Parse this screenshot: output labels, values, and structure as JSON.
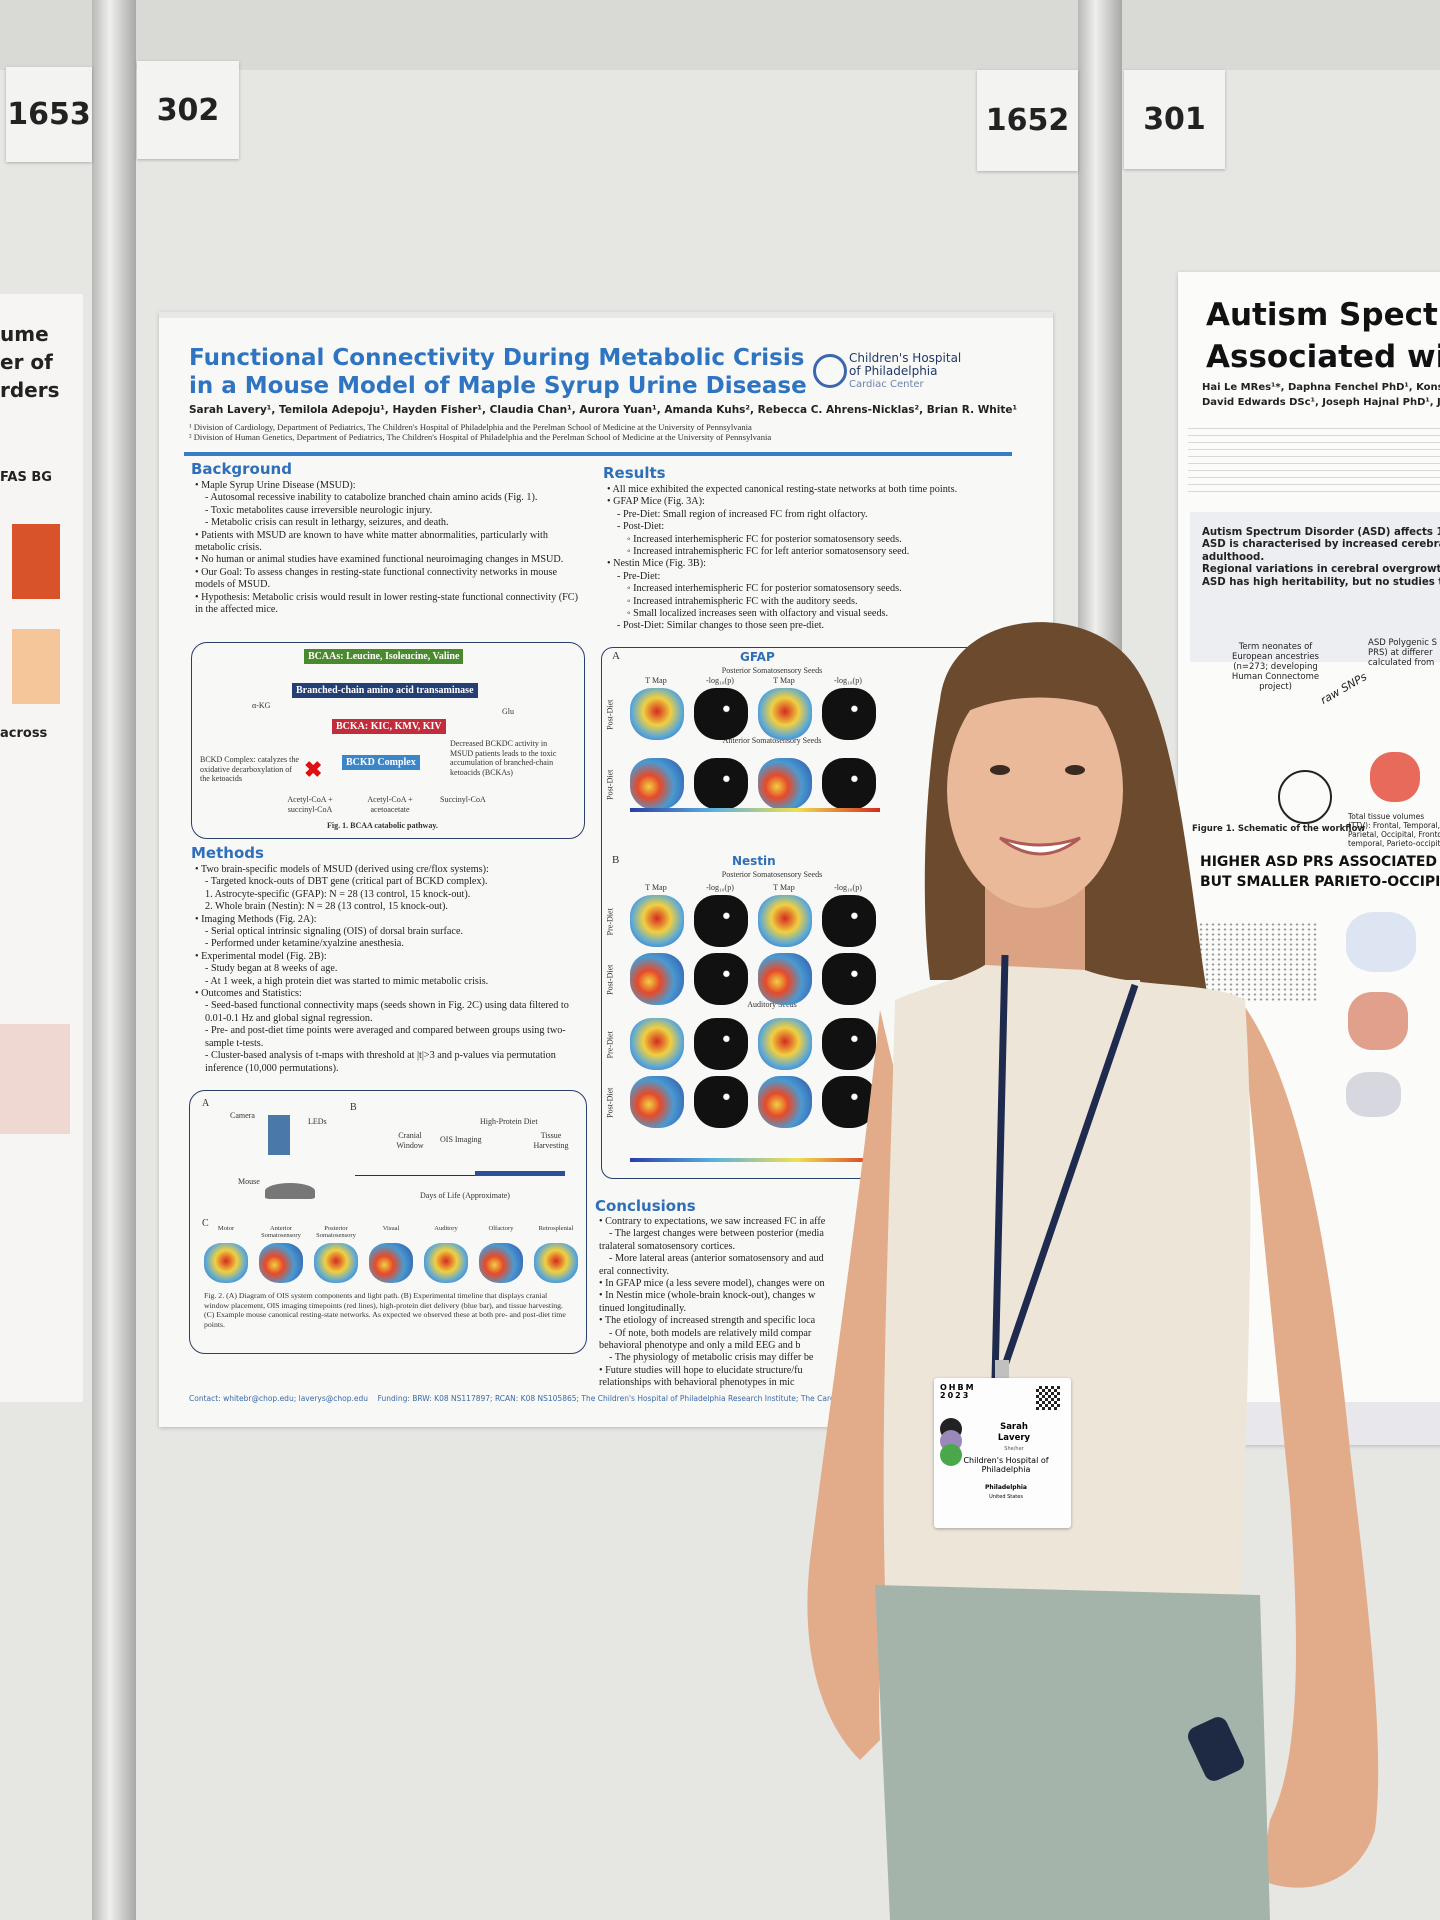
{
  "boards": [
    "1653",
    "302",
    "1652",
    "301"
  ],
  "poster": {
    "title": [
      "Functional Connectivity During Metabolic Crisis",
      "in a Mouse Model of Maple Syrup Urine Disease"
    ],
    "authors": "Sarah Lavery¹, Temilola Adepoju¹, Hayden Fisher¹, Claudia Chan¹, Aurora Yuan¹, Amanda Kuhs², Rebecca C. Ahrens-Nicklas², Brian R. White¹",
    "affiliations": [
      "¹ Division of Cardiology, Department of Pediatrics, The Children's Hospital of Philadelphia and the Perelman School of Medicine at the University of Pennsylvania",
      "² Division of Human Genetics, Department of Pediatrics, The Children's Hospital of Philadelphia and the Perelman School of Medicine at the University of Pennsylvania"
    ],
    "logo": [
      "Children's Hospital",
      "of Philadelphia",
      "Cardiac Center"
    ],
    "background": {
      "heading": "Background",
      "items": [
        "• Maple Syrup Urine Disease (MSUD):",
        "- Autosomal recessive inability to catabolize branched chain amino acids (Fig. 1).",
        "- Toxic metabolites cause irreversible neurologic injury.",
        "- Metabolic crisis can result in lethargy, seizures, and death.",
        "• Patients with MSUD are known to have white matter abnormalities, particularly with metabolic crisis.",
        "• No human or animal studies have examined functional neuroimaging changes in MSUD.",
        "• Our Goal: To assess changes in resting-state functional connectivity networks in mouse models of MSUD.",
        "• Hypothesis: Metabolic crisis would result in lower resting-state functional connectivity (FC) in the affected mice."
      ]
    },
    "fig1": {
      "boxes": [
        "BCAAs: Leucine, Isoleucine, Valine",
        "Branched-chain amino acid transaminase",
        "BCKA: KIC, KMV, KIV",
        "BCKD Complex"
      ],
      "side": [
        "α-KG",
        "Glu",
        "BCKD Complex: catalyzes the oxidative decarboxylation of the ketoacids",
        "Decreased BCKDC activity in MSUD patients leads to the toxic accumulation of branched-chain ketoacids (BCKAs)",
        "Acetyl-CoA + succinyl-CoA",
        "Acetyl-CoA + acetoacetate",
        "Succinyl-CoA"
      ],
      "caption": "Fig. 1. BCAA catabolic pathway."
    },
    "methods": {
      "heading": "Methods",
      "items": [
        "• Two brain-specific models of MSUD (derived using cre/flox systems):",
        "- Targeted knock-outs of DBT gene (critical part of BCKD complex).",
        "1. Astrocyte-specific (GFAP): N = 28 (13 control, 15 knock-out).",
        "2. Whole brain (Nestin): N = 28 (13 control, 15 knock-out).",
        "• Imaging Methods (Fig. 2A):",
        "- Serial optical intrinsic signaling (OIS) of dorsal brain surface.",
        "- Performed under ketamine/xyalzine anesthesia.",
        "• Experimental model (Fig. 2B):",
        "- Study began at 8 weeks of age.",
        "- At 1 week, a high protein diet was started to mimic metabolic crisis.",
        "• Outcomes and Statistics:",
        "- Seed-based functional connectivity maps (seeds shown in Fig. 2C) using data filtered to 0.01-0.1 Hz and global signal regression.",
        "- Pre- and post-diet time points were averaged and compared between groups using two-sample t-tests.",
        "- Cluster-based analysis of t-maps with threshold at |t|>3 and p-values via permutation inference (10,000 permutations)."
      ]
    },
    "fig2": {
      "labels": [
        "A",
        "B",
        "C",
        "Camera",
        "LEDs",
        "Mouse",
        "Cranial Window",
        "OIS Imaging",
        "High-Protein Diet",
        "Tissue Harvesting",
        "Days of Life (Approximate)",
        "Motor",
        "Anterior Somatosensory",
        "Posterior Somatosensory",
        "Visual",
        "Auditory",
        "Olfactory",
        "Retrosplenial"
      ],
      "caption": "Fig. 2. (A) Diagram of OIS system components and light path. (B) Experimental timeline that displays cranial window placement, OIS imaging timepoints (red lines), high-protein diet delivery (blue bar), and tissue harvesting. (C) Example mouse canonical resting-state networks. As expected we observed these at both pre- and post-diet time points."
    },
    "results": {
      "heading": "Results",
      "items": [
        "• All mice exhibited the expected canonical resting-state networks at both time points.",
        "• GFAP Mice (Fig. 3A):",
        "- Pre-Diet: Small region of increased FC from right olfactory.",
        "- Post-Diet:",
        "◦ Increased interhemispheric FC for posterior somatosensory seeds.",
        "◦ Increased intrahemispheric FC for left anterior somatosensory seed.",
        "• Nestin Mice (Fig. 3B):",
        "- Pre-Diet:",
        "◦ Increased interhemispheric FC for posterior somatosensory seeds.",
        "◦ Increased intrahemispheric FC with the auditory seeds.",
        "◦ Small localized increases seen with olfactory and visual seeds.",
        "- Post-Diet: Similar changes to those seen pre-diet."
      ]
    },
    "fig3": {
      "panels": [
        "A",
        "GFAP",
        "B",
        "Nestin"
      ],
      "rows": [
        "Post-Diet",
        "Post-Diet",
        "Pre-Diet",
        "Post-Diet",
        "Pre-Diet",
        "Post-Diet"
      ],
      "seeds": [
        "Posterior Somatosensory Seeds",
        "Anterior Somatosensory Seeds",
        "Posterior Somatosensory Seeds",
        "Auditory Seeds"
      ],
      "cols": [
        "T Map",
        "-log₁₀(p)",
        "T Map",
        "-log₁₀(p)"
      ]
    },
    "conclusions": {
      "heading": "Conclusions",
      "items": [
        "• Contrary to expectations, we saw increased FC in affe",
        "- The largest changes were between posterior (media",
        "tralateral somatosensory cortices.",
        "- More lateral areas (anterior somatosensory and aud",
        "eral connectivity.",
        "• In GFAP mice (a less severe model), changes were on",
        "• In Nestin mice (whole-brain knock-out), changes w",
        "tinued longitudinally.",
        "• The etiology of increased strength and specific loca",
        "- Of note, both models are relatively mild compar",
        "behavioral phenotype and only a mild EEG and b",
        "- The physiology of metabolic crisis may differ be",
        "• Future studies will hope to elucidate structure/fu",
        "relationships with behavioral phenotypes in mic"
      ]
    },
    "footer": [
      "Contact: whitebr@chop.edu; laverys@chop.edu",
      "Funding: BRW: K08 NS117897; RCAN: K08 NS105865; The Children's Hospital of Philadelphia Research Institute; The Cardiac"
    ]
  },
  "right_poster": {
    "title": [
      "Autism Spectrum",
      "Associated with L"
    ],
    "authors": [
      "Hai Le MRes¹*, Daphna Fenchel PhD¹, Konstantina Dim",
      "David Edwards DSc¹, Joseph Hajnal PhD¹, Jacques-De"
    ],
    "bullets": [
      "Autism Spectrum Disorder (ASD) affects 1 in 100 childr",
      "ASD is characterised by increased cerebral overgrowth",
      "adulthood.",
      "Regional variations in cerebral overgrowth in ASD childr",
      "ASD has high heritability, but no studies to date have exa"
    ],
    "workflow": [
      "Term neonates of European ancestries (n=273; developing Human Connectome project)",
      "raw SNPs",
      "ASD Polygenic S PRS) at differer calculated from",
      "Total tissue volumes (TTV): Frontal, Temporal, Parietal, Occipital, Fronto-temporal, Parieto-occipital",
      "Figure 1. Schematic of the workflow"
    ],
    "heading": [
      "HIGHER ASD PRS ASSOCIATED WITH LA",
      "BUT SMALLER PARIETO-OCCIPITAL"
    ]
  },
  "left_poster": {
    "lines": [
      "ume",
      "er of",
      "rders",
      "FAS BG",
      "across"
    ]
  },
  "badge": {
    "event": [
      "OHBM",
      "2023"
    ],
    "name": [
      "Sarah",
      "Lavery"
    ],
    "pronoun": "She/her",
    "org": "Children's Hospital of Philadelphia",
    "city": "Philadelphia",
    "country": "United States"
  }
}
